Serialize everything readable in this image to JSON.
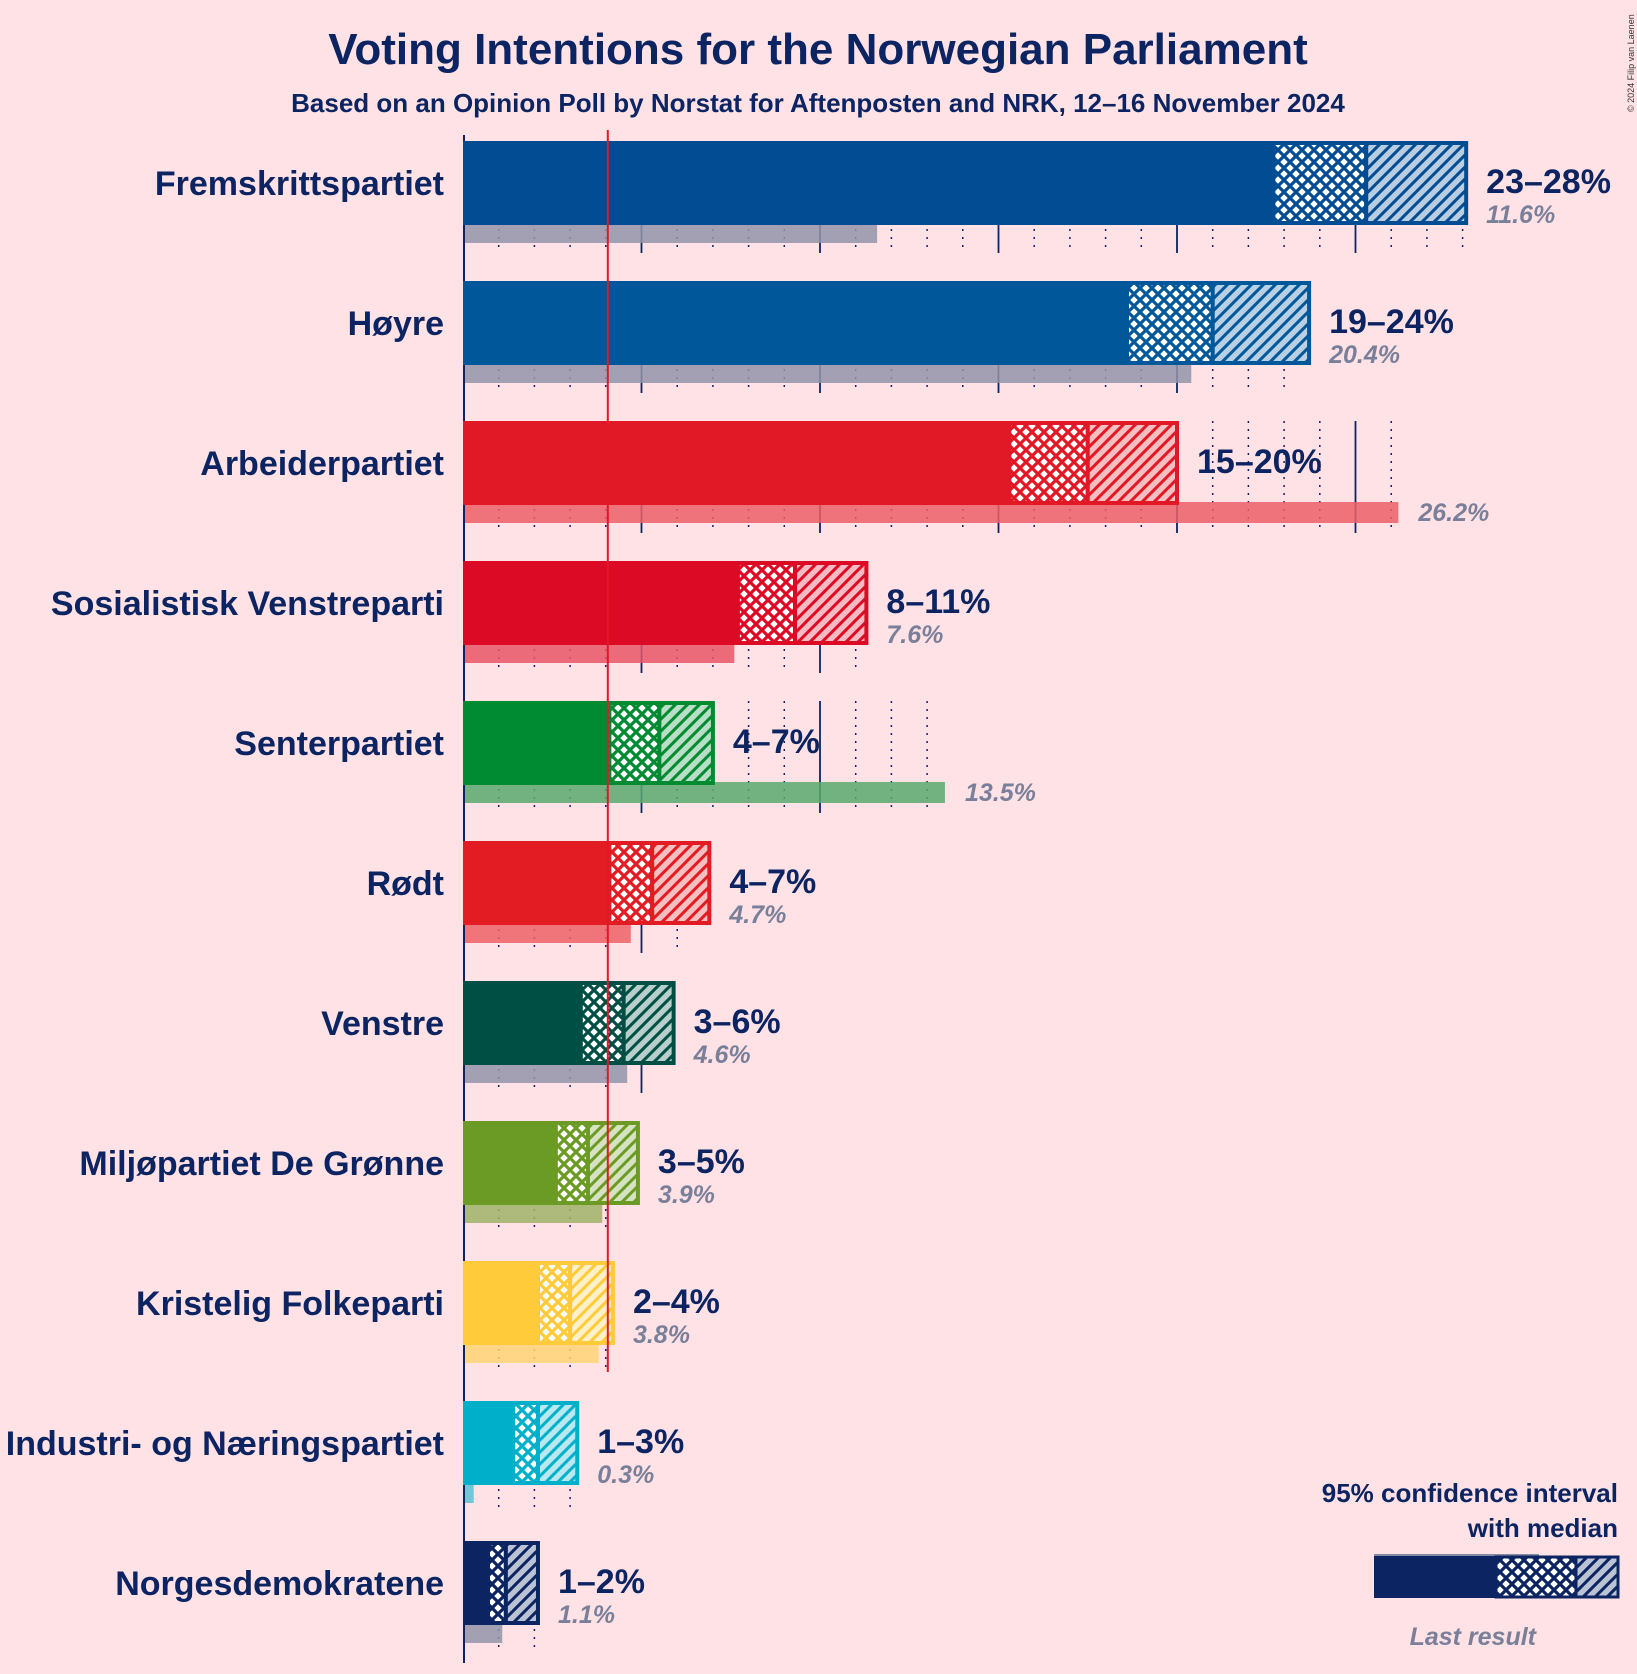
{
  "chart_data": {
    "type": "bar",
    "orientation": "horizontal",
    "title": "Voting Intentions for the Norwegian Parliament",
    "subtitle": "Based on an Opinion Poll by Norstat for Aftenposten and NRK, 12–16 November 2024",
    "copyright": "© 2024 Filip van Laenen",
    "threshold": 4,
    "xlim": [
      0,
      28
    ],
    "legend": {
      "line1": "95% confidence interval",
      "line2": "with median",
      "last_result": "Last result",
      "placement": "bottom-right"
    },
    "parties": [
      {
        "name": "Fremskrittspartiet",
        "color": "#024C93",
        "low": 22.7,
        "median": 25.3,
        "high": 28.1,
        "range_label": "23–28%",
        "last": 11.6,
        "last_label": "11.6%"
      },
      {
        "name": "Høyre",
        "color": "#00579A",
        "low": 18.6,
        "median": 21.0,
        "high": 23.7,
        "range_label": "19–24%",
        "last": 20.4,
        "last_label": "20.4%"
      },
      {
        "name": "Arbeiderpartiet",
        "color": "#E11926",
        "low": 15.3,
        "median": 17.5,
        "high": 20.0,
        "range_label": "15–20%",
        "last": 26.2,
        "last_label": "26.2%"
      },
      {
        "name": "Sosialistisk Venstreparti",
        "color": "#DC0A24",
        "low": 7.7,
        "median": 9.3,
        "high": 11.3,
        "range_label": "8–11%",
        "last": 7.6,
        "last_label": "7.6%"
      },
      {
        "name": "Senterpartiet",
        "color": "#008A31",
        "low": 4.1,
        "median": 5.5,
        "high": 7.0,
        "range_label": "4–7%",
        "last": 13.5,
        "last_label": "13.5%"
      },
      {
        "name": "Rødt",
        "color": "#E31B23",
        "low": 4.1,
        "median": 5.3,
        "high": 6.9,
        "range_label": "4–7%",
        "last": 4.7,
        "last_label": "4.7%"
      },
      {
        "name": "Venstre",
        "color": "#004F44",
        "low": 3.3,
        "median": 4.5,
        "high": 5.9,
        "range_label": "3–6%",
        "last": 4.6,
        "last_label": "4.6%"
      },
      {
        "name": "Miljøpartiet De Grønne",
        "color": "#6B9A25",
        "low": 2.6,
        "median": 3.5,
        "high": 4.9,
        "range_label": "3–5%",
        "last": 3.9,
        "last_label": "3.9%"
      },
      {
        "name": "Kristelig Folkeparti",
        "color": "#FFCB3A",
        "low": 2.1,
        "median": 3.0,
        "high": 4.2,
        "range_label": "2–4%",
        "last": 3.8,
        "last_label": "3.8%"
      },
      {
        "name": "Industri- og Næringspartiet",
        "color": "#00B0CA",
        "low": 1.4,
        "median": 2.1,
        "high": 3.2,
        "range_label": "1–3%",
        "last": 0.3,
        "last_label": "0.3%"
      },
      {
        "name": "Norgesdemokratene",
        "color": "#0C2461",
        "low": 0.7,
        "median": 1.2,
        "high": 2.1,
        "range_label": "1–2%",
        "last": 1.1,
        "last_label": "1.1%"
      }
    ]
  }
}
